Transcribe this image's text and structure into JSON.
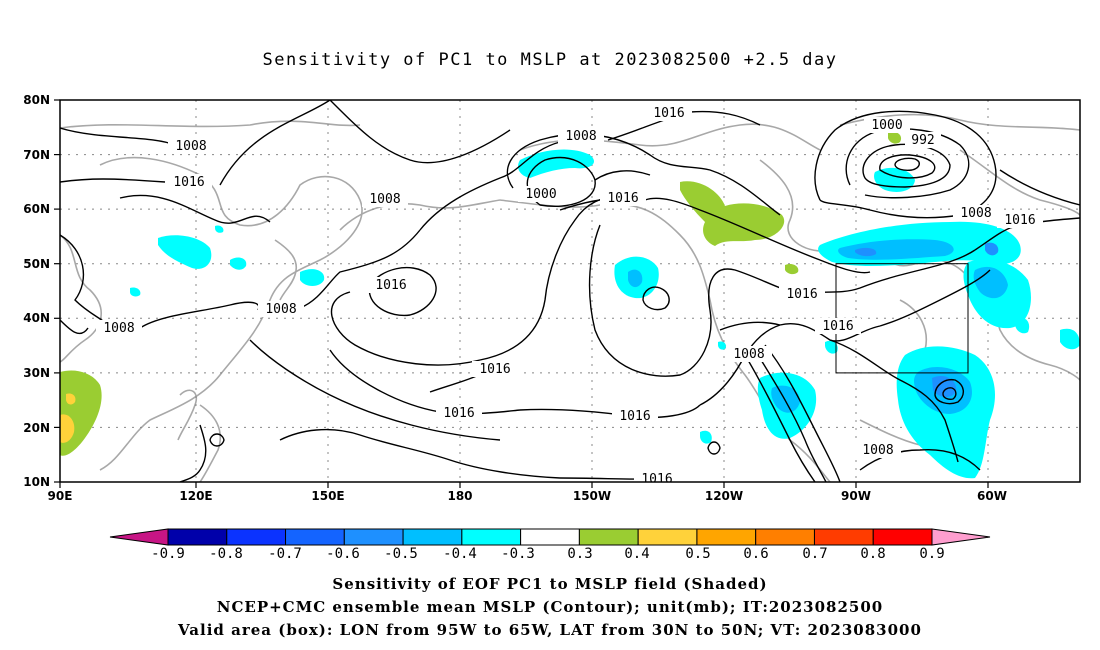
{
  "title": "Sensitivity of PC1 to MSLP at 2023082500 +2.5 day",
  "lat_labels": [
    "80N",
    "70N",
    "60N",
    "50N",
    "40N",
    "30N",
    "20N",
    "10N"
  ],
  "lon_labels": [
    "90E",
    "120E",
    "150E",
    "180",
    "150W",
    "120W",
    "90W",
    "60W"
  ],
  "contour_labels": {
    "c1016_top": "1016",
    "c1008_upper": "1008",
    "c1000_nw": "1000",
    "c1016_mid": "1016",
    "c1008_left": "1008",
    "c1016_left": "1016",
    "c1008_nwpac": "1008",
    "c1016_nwpac": "1016",
    "c1008_sea": "1008",
    "c1008_india": "1008",
    "c1016_pac": "1016",
    "c1016_lower": "1016",
    "c1016_se": "1016",
    "c1016_bottom": "1016",
    "c1008_mex": "1008",
    "c1016_na1": "1016",
    "c1016_na2": "1016",
    "c1000_low": "1000",
    "c992_low": "992",
    "c1008_atl": "1008",
    "c1016_atl": "1016",
    "c1008_gulf": "1008"
  },
  "colorbar": {
    "labels": [
      "-0.9",
      "-0.8",
      "-0.7",
      "-0.6",
      "-0.5",
      "-0.4",
      "-0.3",
      "0.3",
      "0.4",
      "0.5",
      "0.6",
      "0.7",
      "0.8",
      "0.9"
    ],
    "colors": [
      "#0000aa",
      "#0b33ff",
      "#1464ff",
      "#1e90ff",
      "#00bfff",
      "#00ffff",
      "#ffffff",
      "#9acd32",
      "#ffd23a",
      "#ffa500",
      "#ff7f00",
      "#ff3c00",
      "#ff0000"
    ],
    "low_end_color": "#c71585",
    "high_end_color": "#ff9ecf"
  },
  "captions": [
    "Sensitivity of EOF PC1 to MSLP field (Shaded)",
    "NCEP+CMC ensemble mean MSLP (Contour); unit(mb); IT:2023082500",
    "Valid area (box): LON from 95W to 65W, LAT from 30N to 50N; VT: 2023083000"
  ]
}
